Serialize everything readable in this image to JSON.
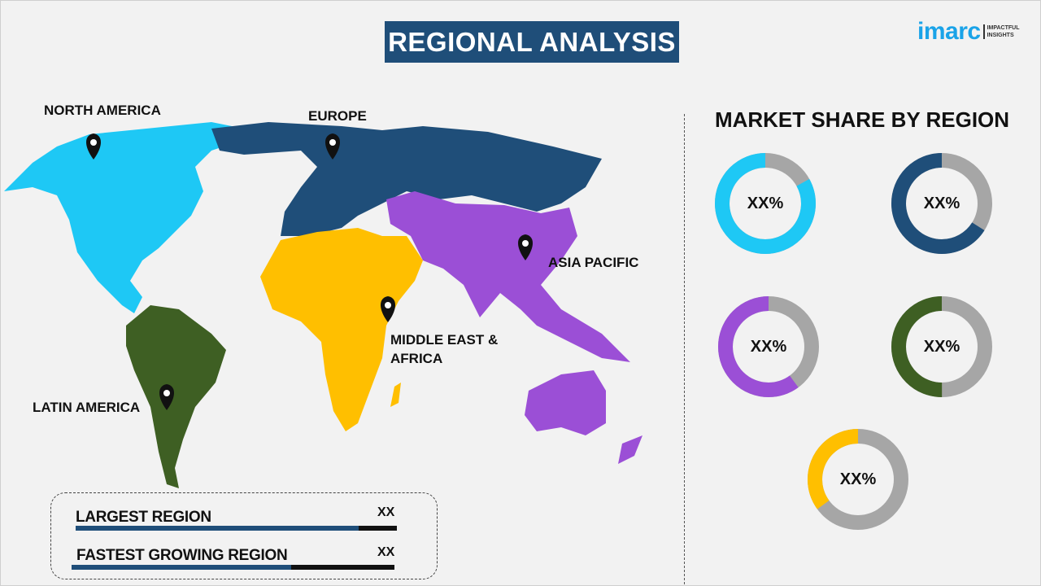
{
  "header": {
    "title": "REGIONAL ANALYSIS"
  },
  "logo": {
    "word": "imarc",
    "tagline_line1": "IMPACTFUL",
    "tagline_line2": "INSIGHTS",
    "color": "#1aa3e8"
  },
  "map": {
    "regions": [
      {
        "name": "NORTH AMERICA",
        "color": "#1ec8f5"
      },
      {
        "name": "EUROPE",
        "color": "#1f4e79"
      },
      {
        "name": "ASIA PACIFIC",
        "color": "#9b4fd6"
      },
      {
        "name": "MIDDLE EAST & AFRICA",
        "color": "#ffbf00"
      },
      {
        "name": "LATIN AMERICA",
        "color": "#3e5f23"
      }
    ],
    "pin_icon": "map-pin-icon"
  },
  "market_share": {
    "title": "MARKET SHARE BY REGION",
    "remainder_color": "#a6a6a6",
    "donuts": [
      {
        "region": "NORTH AMERICA",
        "label": "XX%",
        "color": "#1ec8f5",
        "fraction": 0.83
      },
      {
        "region": "EUROPE",
        "label": "XX%",
        "color": "#1f4e79",
        "fraction": 0.66
      },
      {
        "region": "ASIA PACIFIC",
        "label": "XX%",
        "color": "#9b4fd6",
        "fraction": 0.6
      },
      {
        "region": "LATIN AMERICA",
        "label": "XX%",
        "color": "#3e5f23",
        "fraction": 0.5
      },
      {
        "region": "MIDDLE EAST & AFRICA",
        "label": "XX%",
        "color": "#ffbf00",
        "fraction": 0.35
      }
    ]
  },
  "summary": {
    "rows": [
      {
        "label": "LARGEST REGION",
        "value": "XX",
        "fill": 0.88
      },
      {
        "label": "FASTEST GROWING REGION",
        "value": "XX",
        "fill": 0.68
      }
    ]
  }
}
